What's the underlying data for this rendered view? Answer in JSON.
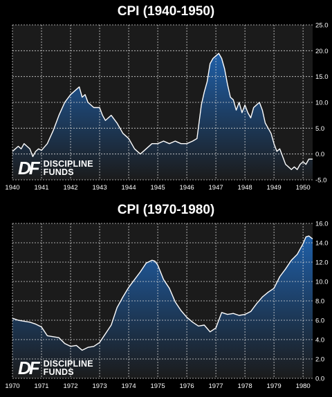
{
  "colors": {
    "background": "#000000",
    "plot_background": "#1b1b1b",
    "fill_top": "#1f5fa8",
    "fill_bottom": "#1b1b1b",
    "line": "#ffffff",
    "grid": "#d8d8d8"
  },
  "logo": {
    "mark": "DF",
    "line1": "DISCIPLINE",
    "line2": "FUNDS"
  },
  "chart_data": [
    {
      "type": "area",
      "title": "CPI (1940-1950)",
      "xlabel": "",
      "ylabel": "",
      "xlim": [
        1940.0,
        1950.33
      ],
      "ylim": [
        -5,
        25
      ],
      "grid": true,
      "xticks": [
        "1940",
        "1941",
        "1942",
        "1943",
        "1944",
        "1945",
        "1946",
        "1947",
        "1948",
        "1949",
        "1950"
      ],
      "yticks": [
        "-5.0",
        "0.0",
        "5.0",
        "10.0",
        "15.0",
        "20.0",
        "25.0"
      ],
      "x": [
        1940.0,
        1940.1,
        1940.2,
        1940.3,
        1940.4,
        1940.5,
        1940.6,
        1940.7,
        1940.8,
        1940.9,
        1941.0,
        1941.2,
        1941.4,
        1941.6,
        1941.8,
        1942.0,
        1942.2,
        1942.3,
        1942.4,
        1942.5,
        1942.6,
        1942.8,
        1943.0,
        1943.1,
        1943.2,
        1943.4,
        1943.6,
        1943.8,
        1944.0,
        1944.2,
        1944.4,
        1944.6,
        1944.8,
        1945.0,
        1945.2,
        1945.4,
        1945.6,
        1945.8,
        1946.0,
        1946.2,
        1946.35,
        1946.5,
        1946.6,
        1946.7,
        1946.8,
        1946.9,
        1947.0,
        1947.1,
        1947.2,
        1947.3,
        1947.4,
        1947.5,
        1947.6,
        1947.7,
        1947.8,
        1947.9,
        1948.0,
        1948.1,
        1948.2,
        1948.3,
        1948.4,
        1948.5,
        1948.6,
        1948.7,
        1948.8,
        1948.9,
        1949.0,
        1949.1,
        1949.2,
        1949.3,
        1949.4,
        1949.5,
        1949.6,
        1949.7,
        1949.8,
        1949.9,
        1950.0,
        1950.1,
        1950.2,
        1950.33
      ],
      "y": [
        0.5,
        1.0,
        1.5,
        1.0,
        2.0,
        1.5,
        1.0,
        -0.5,
        0.5,
        1.0,
        0.7,
        2.0,
        4.5,
        7.5,
        10.0,
        11.5,
        12.5,
        13.0,
        11.0,
        11.5,
        10.0,
        9.0,
        9.0,
        7.5,
        6.5,
        7.5,
        6.0,
        4.0,
        3.0,
        1.0,
        0.0,
        1.0,
        2.0,
        2.0,
        2.5,
        2.0,
        2.5,
        2.0,
        2.0,
        2.5,
        3.0,
        9.5,
        12.0,
        14.0,
        17.5,
        18.5,
        19.0,
        19.5,
        18.5,
        16.5,
        13.5,
        11.0,
        10.5,
        8.5,
        10.0,
        8.0,
        9.5,
        8.0,
        7.0,
        9.0,
        9.5,
        10.0,
        8.5,
        6.0,
        5.0,
        4.0,
        2.0,
        0.5,
        1.0,
        -0.5,
        -2.0,
        -2.5,
        -3.0,
        -2.5,
        -3.0,
        -2.0,
        -1.5,
        -2.0,
        -1.0,
        -1.0
      ]
    },
    {
      "type": "area",
      "title": "CPI (1970-1980)",
      "xlabel": "",
      "ylabel": "",
      "xlim": [
        1970.0,
        1980.33
      ],
      "ylim": [
        0,
        16
      ],
      "grid": true,
      "xticks": [
        "1970",
        "1971",
        "1972",
        "1973",
        "1974",
        "1975",
        "1976",
        "1977",
        "1978",
        "1979",
        "1980"
      ],
      "yticks": [
        "0.0",
        "2.0",
        "4.0",
        "6.0",
        "8.0",
        "10.0",
        "12.0",
        "14.0",
        "16.0"
      ],
      "x": [
        1970.0,
        1970.2,
        1970.4,
        1970.6,
        1970.8,
        1971.0,
        1971.2,
        1971.4,
        1971.6,
        1971.8,
        1972.0,
        1972.2,
        1972.4,
        1972.6,
        1972.8,
        1973.0,
        1973.2,
        1973.4,
        1973.6,
        1973.8,
        1974.0,
        1974.2,
        1974.4,
        1974.6,
        1974.8,
        1974.9,
        1975.0,
        1975.2,
        1975.4,
        1975.6,
        1975.8,
        1976.0,
        1976.2,
        1976.4,
        1976.6,
        1976.8,
        1977.0,
        1977.2,
        1977.4,
        1977.6,
        1977.8,
        1978.0,
        1978.2,
        1978.4,
        1978.6,
        1978.8,
        1979.0,
        1979.2,
        1979.4,
        1979.6,
        1979.8,
        1980.0,
        1980.1,
        1980.2,
        1980.33
      ],
      "y": [
        6.2,
        6.0,
        5.9,
        5.8,
        5.6,
        5.3,
        4.4,
        4.3,
        4.2,
        3.6,
        3.3,
        3.4,
        2.9,
        3.2,
        3.3,
        3.7,
        4.6,
        5.5,
        7.3,
        8.4,
        9.4,
        10.2,
        11.0,
        11.9,
        12.2,
        12.1,
        11.7,
        10.2,
        9.3,
        7.9,
        7.0,
        6.3,
        5.8,
        5.4,
        5.5,
        4.8,
        5.2,
        6.8,
        6.6,
        6.7,
        6.5,
        6.6,
        6.9,
        7.7,
        8.4,
        8.9,
        9.3,
        10.5,
        11.3,
        12.2,
        12.8,
        13.9,
        14.6,
        14.7,
        14.4
      ]
    }
  ]
}
